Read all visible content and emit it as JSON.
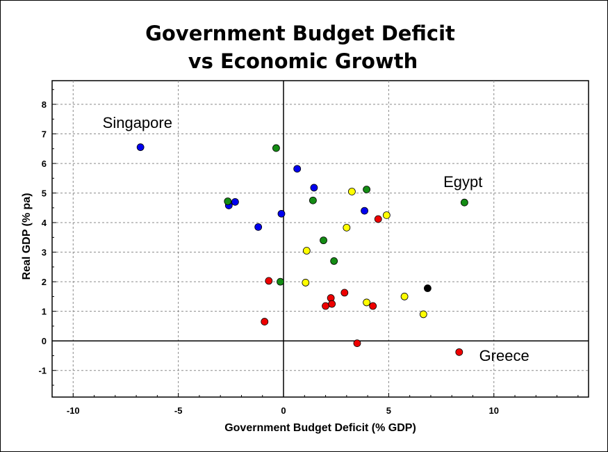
{
  "chart_data": {
    "type": "scatter",
    "title_lines": [
      "Government Budget Deficit",
      "vs Economic Growth"
    ],
    "xlabel": "Government Budget Deficit (% GDP)",
    "ylabel": "Real GDP (% pa)",
    "xlim": [
      -11,
      14.5
    ],
    "ylim": [
      -1.9,
      8.8
    ],
    "x_ticks": [
      -10,
      -5,
      0,
      5,
      10
    ],
    "y_ticks": [
      -1,
      0,
      1,
      2,
      3,
      4,
      5,
      6,
      7,
      8
    ],
    "x_gridlines": [
      -10,
      -5,
      5,
      10
    ],
    "y_gridlines": [
      -1,
      1,
      2,
      3,
      4,
      5,
      6,
      7,
      8
    ],
    "zero_lines": true,
    "grid": true,
    "colors": {
      "blue": "#0000ee",
      "green": "#148c14",
      "yellow": "#ffff00",
      "red": "#ee0000",
      "black": "#000000"
    },
    "points": [
      {
        "x": -6.8,
        "y": 6.55,
        "color": "blue"
      },
      {
        "x": -2.6,
        "y": 4.58,
        "color": "blue"
      },
      {
        "x": -2.3,
        "y": 4.7,
        "color": "blue"
      },
      {
        "x": -1.2,
        "y": 3.85,
        "color": "blue"
      },
      {
        "x": -0.1,
        "y": 4.3,
        "color": "blue"
      },
      {
        "x": 0.65,
        "y": 5.82,
        "color": "blue"
      },
      {
        "x": 1.45,
        "y": 5.18,
        "color": "blue"
      },
      {
        "x": 3.85,
        "y": 4.4,
        "color": "blue"
      },
      {
        "x": -2.65,
        "y": 4.72,
        "color": "green"
      },
      {
        "x": -0.35,
        "y": 6.52,
        "color": "green"
      },
      {
        "x": 1.4,
        "y": 4.75,
        "color": "green"
      },
      {
        "x": 3.95,
        "y": 5.12,
        "color": "green"
      },
      {
        "x": 1.9,
        "y": 3.4,
        "color": "green"
      },
      {
        "x": 2.4,
        "y": 2.7,
        "color": "green"
      },
      {
        "x": -0.15,
        "y": 2.0,
        "color": "green"
      },
      {
        "x": 8.6,
        "y": 4.68,
        "color": "green"
      },
      {
        "x": 3.25,
        "y": 5.05,
        "color": "yellow"
      },
      {
        "x": 4.9,
        "y": 4.25,
        "color": "yellow"
      },
      {
        "x": 3.0,
        "y": 3.83,
        "color": "yellow"
      },
      {
        "x": 1.1,
        "y": 3.05,
        "color": "yellow"
      },
      {
        "x": 1.05,
        "y": 1.97,
        "color": "yellow"
      },
      {
        "x": 3.95,
        "y": 1.3,
        "color": "yellow"
      },
      {
        "x": 5.75,
        "y": 1.5,
        "color": "yellow"
      },
      {
        "x": 6.65,
        "y": 0.9,
        "color": "yellow"
      },
      {
        "x": -0.7,
        "y": 2.03,
        "color": "red"
      },
      {
        "x": -0.9,
        "y": 0.65,
        "color": "red"
      },
      {
        "x": 2.25,
        "y": 1.45,
        "color": "red"
      },
      {
        "x": 2.0,
        "y": 1.18,
        "color": "red"
      },
      {
        "x": 2.3,
        "y": 1.25,
        "color": "red"
      },
      {
        "x": 2.9,
        "y": 1.63,
        "color": "red"
      },
      {
        "x": 4.25,
        "y": 1.18,
        "color": "red"
      },
      {
        "x": 4.5,
        "y": 4.12,
        "color": "red"
      },
      {
        "x": 3.5,
        "y": -0.08,
        "color": "red"
      },
      {
        "x": 8.35,
        "y": -0.38,
        "color": "red"
      },
      {
        "x": 6.85,
        "y": 1.78,
        "color": "black"
      }
    ],
    "annotations": [
      {
        "text": "Singapore",
        "x": -8.6,
        "y": 7.2
      },
      {
        "text": "Egypt",
        "x": 7.6,
        "y": 5.2
      },
      {
        "text": "Greece",
        "x": 9.3,
        "y": -0.68
      }
    ]
  }
}
